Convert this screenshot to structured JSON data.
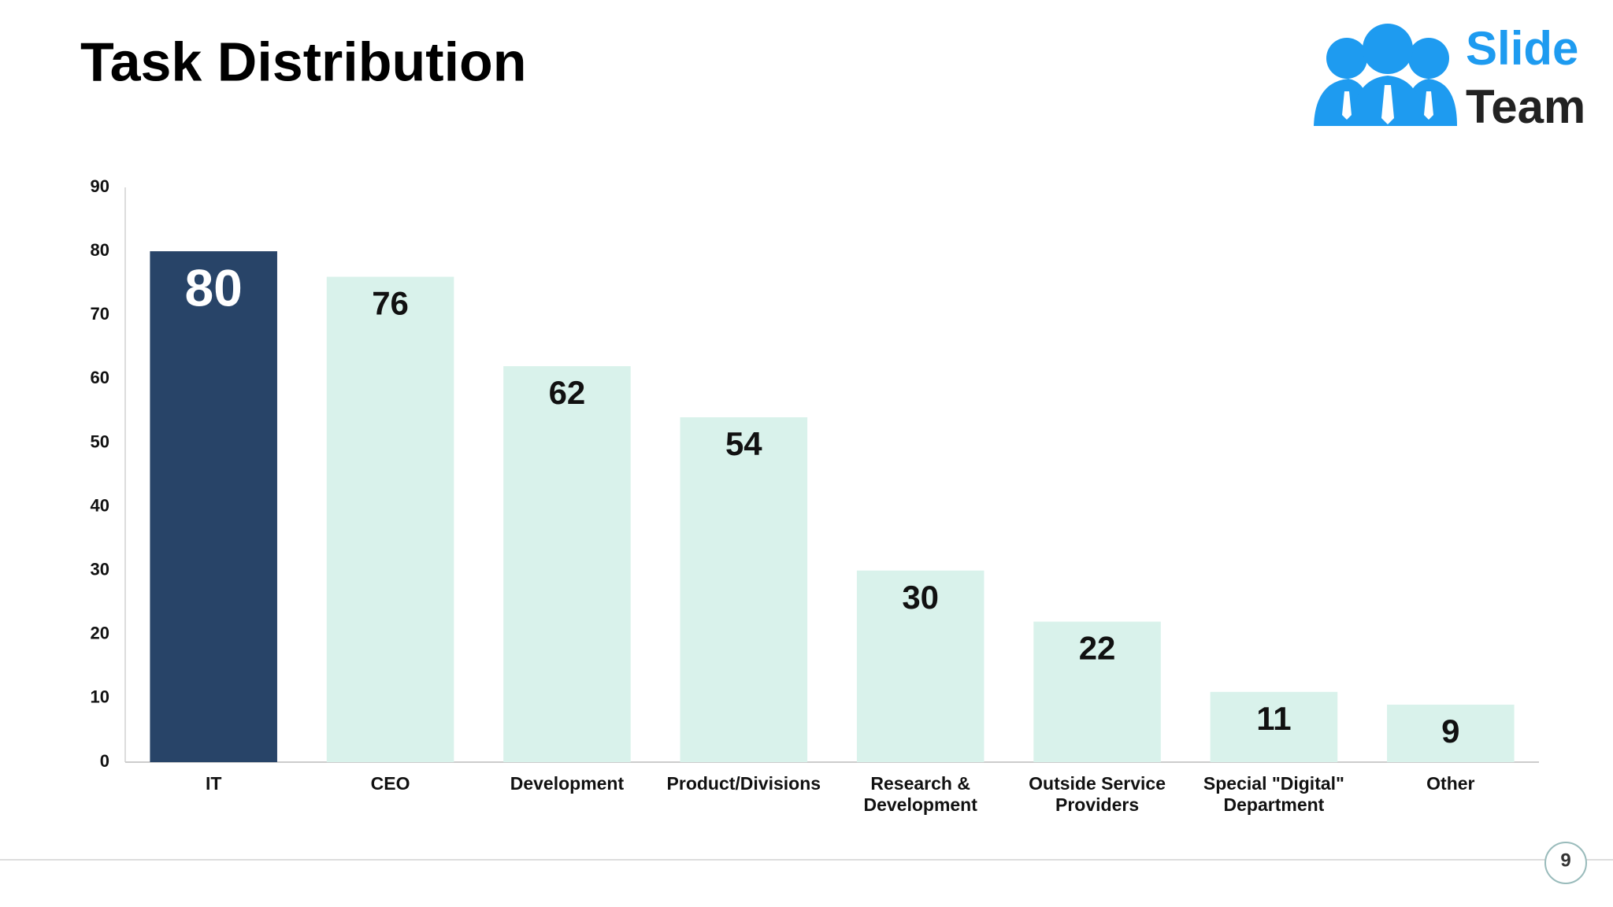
{
  "chart_data": {
    "type": "bar",
    "title": "Task Distribution",
    "categories": [
      "IT",
      "CEO",
      "Development",
      "Product/Divisions",
      "Research & Development",
      "Outside Service Providers",
      "Special \"Digital\" Department",
      "Other"
    ],
    "values": [
      80,
      76,
      62,
      54,
      30,
      22,
      11,
      9
    ],
    "colors": [
      "#284468",
      "#d9f2eb",
      "#d9f2eb",
      "#d9f2eb",
      "#d9f2eb",
      "#d9f2eb",
      "#d9f2eb",
      "#d9f2eb"
    ],
    "ylim": [
      0,
      90
    ],
    "yticks": [
      0,
      10,
      20,
      30,
      40,
      50,
      60,
      70,
      80,
      90
    ],
    "grid": false
  },
  "logo": {
    "line1": "Slide",
    "line2": "Team"
  },
  "page_number": "9"
}
